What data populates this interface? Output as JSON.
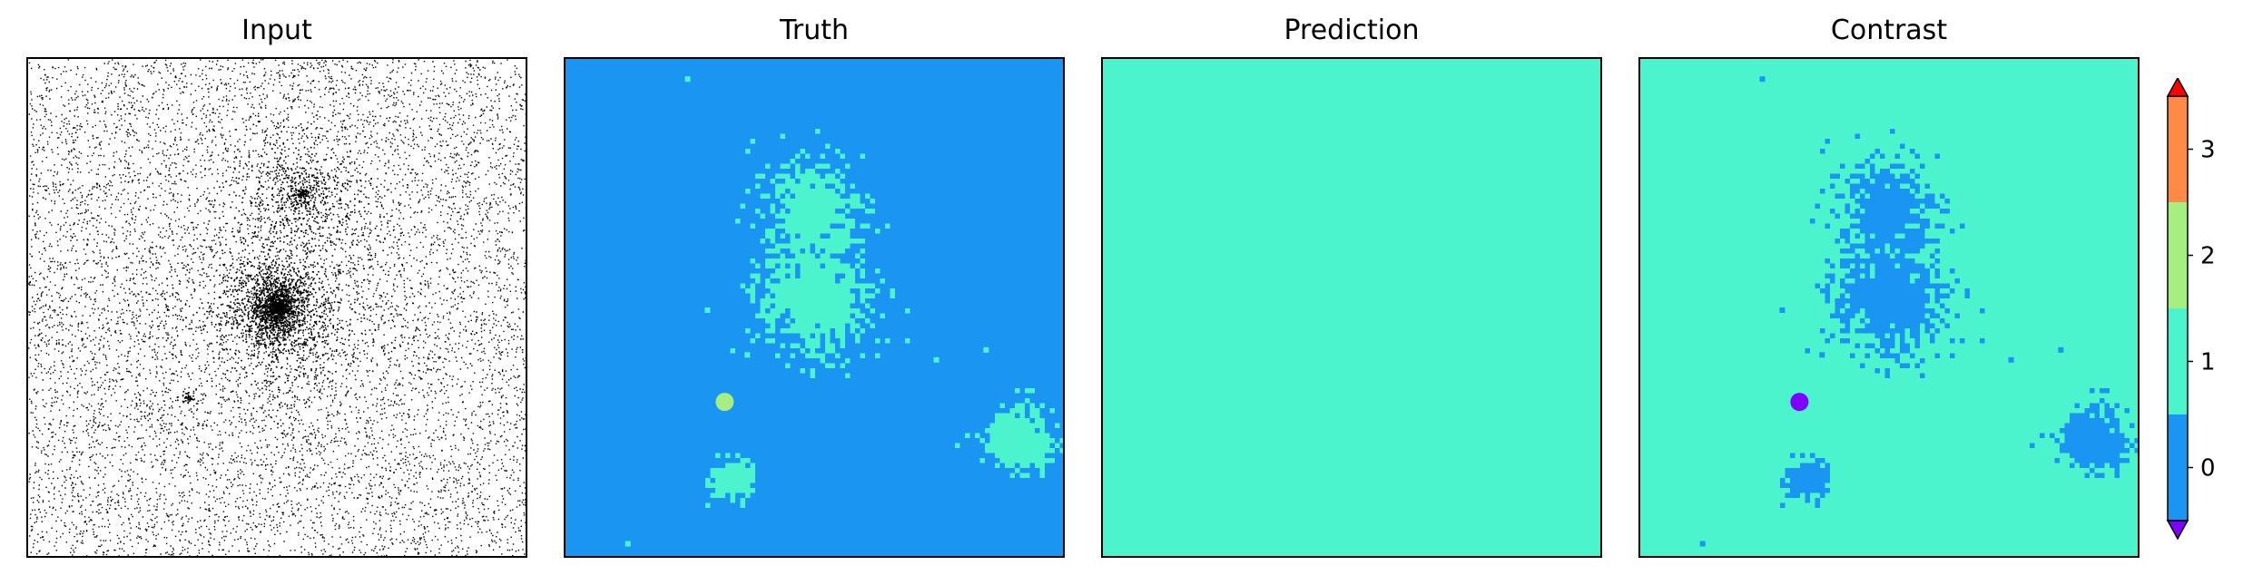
{
  "panels": [
    {
      "title": "Input"
    },
    {
      "title": "Truth"
    },
    {
      "title": "Prediction"
    },
    {
      "title": "Contrast"
    }
  ],
  "colors": {
    "class_0": "#1b95f2",
    "class_1": "#4cf4cd",
    "class_2": "#a6ee7f",
    "class_3": "#ff8a46",
    "over": "#ff0000",
    "under": "#7f00ff",
    "input_dot": "#000000"
  },
  "chart_data": [
    {
      "type": "heatmap",
      "title": "Input",
      "description_values": {
        "background_noise": "sparse black dots on white",
        "clusters": [
          {
            "cx": 0.5,
            "cy": 0.5,
            "strength": "dense"
          },
          {
            "cx": 0.55,
            "cy": 0.27,
            "strength": "light"
          },
          {
            "cx": 0.32,
            "cy": 0.68,
            "strength": "small"
          }
        ]
      }
    },
    {
      "type": "heatmap",
      "title": "Truth",
      "background_class": 0,
      "regions": [
        {
          "class": 1,
          "cx": 0.5,
          "cy": 0.48,
          "spread": 0.06
        },
        {
          "class": 1,
          "cx": 0.49,
          "cy": 0.3,
          "spread": 0.05
        },
        {
          "class": 1,
          "cx": 0.91,
          "cy": 0.76,
          "spread": 0.035
        },
        {
          "class": 1,
          "cx": 0.33,
          "cy": 0.84,
          "spread": 0.02
        },
        {
          "class": 2,
          "cx": 0.32,
          "cy": 0.69,
          "spread": 0.0
        }
      ]
    },
    {
      "type": "heatmap",
      "title": "Prediction",
      "background_class": 1,
      "regions": []
    },
    {
      "type": "heatmap",
      "title": "Contrast",
      "background_class": 1,
      "regions": [
        {
          "class": 0,
          "cx": 0.5,
          "cy": 0.48,
          "spread": 0.06
        },
        {
          "class": 0,
          "cx": 0.49,
          "cy": 0.3,
          "spread": 0.05
        },
        {
          "class": 0,
          "cx": 0.91,
          "cy": 0.76,
          "spread": 0.035
        },
        {
          "class": 0,
          "cx": 0.33,
          "cy": 0.84,
          "spread": 0.02
        },
        {
          "class": "under",
          "cx": 0.32,
          "cy": 0.69,
          "spread": 0.0
        }
      ]
    }
  ],
  "colorbar": {
    "ticks": [
      "0",
      "1",
      "2",
      "3"
    ],
    "extend": "both"
  }
}
